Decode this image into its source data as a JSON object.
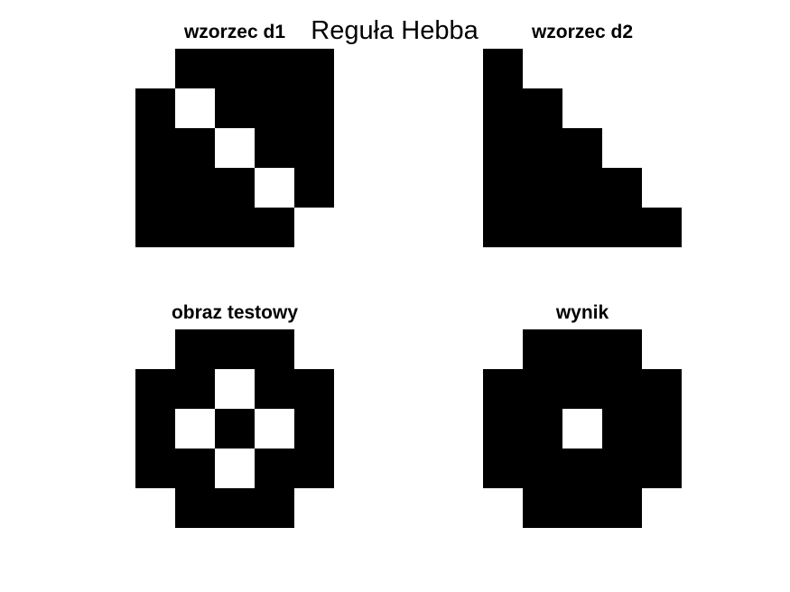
{
  "title": "Reguła Hebba",
  "colors": {
    "filled": "#000000",
    "empty": "#ffffff"
  },
  "panels": [
    {
      "id": "d1",
      "title": "wzorzec d1",
      "grid": [
        [
          0,
          1,
          1,
          1,
          1
        ],
        [
          1,
          0,
          1,
          1,
          1
        ],
        [
          1,
          1,
          0,
          1,
          1
        ],
        [
          1,
          1,
          1,
          0,
          1
        ],
        [
          1,
          1,
          1,
          1,
          0
        ]
      ]
    },
    {
      "id": "d2",
      "title": "wzorzec d2",
      "grid": [
        [
          1,
          0,
          0,
          0,
          0
        ],
        [
          1,
          1,
          0,
          0,
          0
        ],
        [
          1,
          1,
          1,
          0,
          0
        ],
        [
          1,
          1,
          1,
          1,
          0
        ],
        [
          1,
          1,
          1,
          1,
          1
        ]
      ]
    },
    {
      "id": "test",
      "title": "obraz testowy",
      "grid": [
        [
          0,
          1,
          1,
          1,
          0
        ],
        [
          1,
          1,
          0,
          1,
          1
        ],
        [
          1,
          0,
          1,
          0,
          1
        ],
        [
          1,
          1,
          0,
          1,
          1
        ],
        [
          0,
          1,
          1,
          1,
          0
        ]
      ]
    },
    {
      "id": "result",
      "title": "wynik",
      "grid": [
        [
          0,
          1,
          1,
          1,
          0
        ],
        [
          1,
          1,
          1,
          1,
          1
        ],
        [
          1,
          1,
          0,
          1,
          1
        ],
        [
          1,
          1,
          1,
          1,
          1
        ],
        [
          0,
          1,
          1,
          1,
          0
        ]
      ]
    }
  ]
}
